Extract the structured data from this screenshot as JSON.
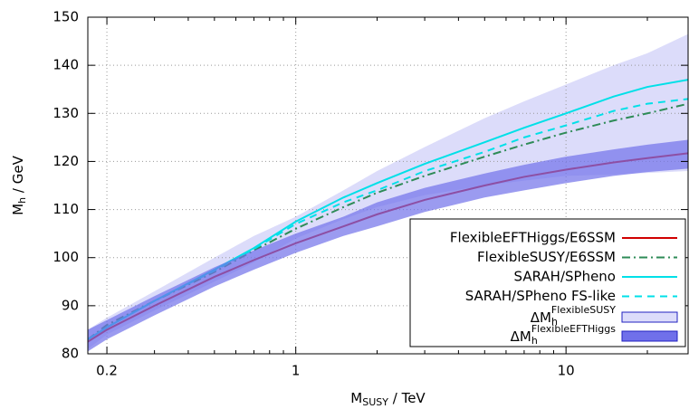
{
  "chart_data": {
    "type": "line",
    "x_label": {
      "text": "M",
      "sub": "SUSY",
      "after": " / TeV"
    },
    "y_label": {
      "text": "M",
      "sub": "h",
      "after": " / GeV"
    },
    "log_x": true,
    "grid": true,
    "legend": "lower right",
    "x": [
      0.17,
      0.2,
      0.3,
      0.5,
      0.7,
      1,
      1.5,
      2,
      3,
      5,
      7,
      10,
      15,
      20,
      28.3
    ],
    "xlim": [
      0.17,
      28.3
    ],
    "xticks": [
      0.2,
      1,
      10
    ],
    "xminorticks": [
      0.3,
      0.4,
      0.5,
      0.6,
      0.7,
      0.8,
      0.9,
      2,
      3,
      4,
      5,
      6,
      7,
      8,
      9,
      20
    ],
    "ylim": [
      80,
      150
    ],
    "yticks": [
      80,
      90,
      100,
      110,
      120,
      130,
      140,
      150
    ],
    "series": [
      {
        "name": "FlexibleEFTHiggs/E6SSM",
        "color": "#d00000",
        "dash": "solid",
        "values": [
          82.5,
          85,
          90,
          96,
          99.5,
          103,
          106.5,
          109,
          112,
          115,
          116.8,
          118.3,
          119.8,
          120.7,
          121.7
        ]
      },
      {
        "name": "FlexibleSUSY/E6SSM",
        "color": "#2e8b57",
        "dash": "dashdot",
        "values": [
          83,
          86,
          91,
          97,
          101.5,
          106,
          110.5,
          113.5,
          117,
          121,
          123.5,
          126,
          128.5,
          130,
          132
        ]
      },
      {
        "name": "SARAH/SPheno",
        "color": "#00e0e8",
        "dash": "solid",
        "values": [
          83,
          85.5,
          91,
          97.5,
          102,
          107.5,
          112.5,
          115.5,
          119.5,
          124,
          127,
          130,
          133.5,
          135.5,
          137
        ]
      },
      {
        "name": "SARAH/SPheno FS-like",
        "color": "#00e0e8",
        "dash": "dashed",
        "values": [
          83,
          85.5,
          91,
          97.3,
          101.8,
          107,
          111.5,
          114,
          118,
          122,
          125,
          127.5,
          130.5,
          132,
          133
        ]
      }
    ],
    "bands": [
      {
        "name": {
          "text": "ΔM",
          "sub": "h",
          "sup": "FlexibleSUSY"
        },
        "color": "#dcdcfa",
        "edge": "#2020c0",
        "lower": [
          81,
          84,
          89,
          95,
          99,
          104,
          108,
          110.5,
          113,
          115,
          116,
          117,
          117.3,
          117.6,
          118
        ],
        "upper": [
          85,
          87.5,
          93,
          100,
          104.5,
          108.5,
          114,
          118,
          123,
          129,
          132.5,
          136,
          140,
          142.5,
          146.5
        ]
      },
      {
        "name": {
          "text": "ΔM",
          "sub": "h",
          "sup": "FlexibleEFTHiggs"
        },
        "color": "#7070ea",
        "edge": "#2020c0",
        "lower": [
          80.5,
          83,
          88,
          94,
          97.5,
          101,
          104.5,
          106.5,
          109.5,
          112.5,
          114,
          115.5,
          117,
          117.8,
          118.5
        ],
        "upper": [
          85,
          87,
          92,
          98,
          101.5,
          105,
          108.5,
          111.5,
          114.5,
          117.5,
          119.3,
          121,
          122.5,
          123.5,
          124.5
        ]
      }
    ]
  }
}
